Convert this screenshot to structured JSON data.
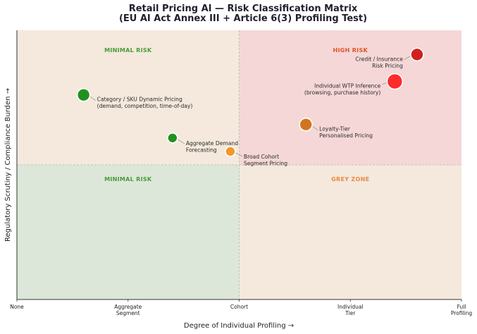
{
  "title_line1": "Retail Pricing AI — Risk Classification Matrix",
  "title_line2": "(EU AI Act Annex III + Article 6(3) Profiling Test)",
  "chart_data": {
    "type": "scatter",
    "xlabel": "Degree of Individual Profiling →",
    "ylabel": "Regulatory Scrutiny / Compliance Burden →",
    "xlim": [
      0,
      4
    ],
    "ylim": [
      0,
      10
    ],
    "x_ticks": [
      {
        "value": 0,
        "label": [
          "None"
        ]
      },
      {
        "value": 1,
        "label": [
          "Aggregate",
          "Segment"
        ]
      },
      {
        "value": 2,
        "label": [
          "Cohort"
        ]
      },
      {
        "value": 3,
        "label": [
          "Individual",
          "Tier"
        ]
      },
      {
        "value": 4,
        "label": [
          "Full",
          "Profiling"
        ]
      }
    ],
    "quadrants": [
      {
        "label": "MINIMAL RISK",
        "region": "top-left",
        "color": "#4a9a3a",
        "fill": "#f4e9dc"
      },
      {
        "label": "HIGH RISK",
        "region": "top-right",
        "color": "#e0522a",
        "fill": "#f5d7d7"
      },
      {
        "label": "MINIMAL RISK",
        "region": "bottom-left",
        "color": "#4a9a3a",
        "fill": "#dce7d9"
      },
      {
        "label": "GREY ZONE",
        "region": "bottom-right",
        "color": "#e8894a",
        "fill": "#f4e9dc"
      }
    ],
    "points": [
      {
        "label": [
          "Category / SKU Dynamic Pricing",
          "(demand, competition, time-of-day)"
        ],
        "x": 0.6,
        "y": 7.6,
        "color": "#22901f",
        "size": "medium"
      },
      {
        "label": [
          "Aggregate Demand",
          "Forecasting"
        ],
        "x": 1.4,
        "y": 6.0,
        "color": "#22901f",
        "size": "small"
      },
      {
        "label": [
          "Broad Cohort",
          "Segment Pricing"
        ],
        "x": 1.92,
        "y": 5.5,
        "color": "#f5952a",
        "size": "small"
      },
      {
        "label": [
          "Loyalty-Tier",
          "Personalised Pricing"
        ],
        "x": 2.6,
        "y": 6.5,
        "color": "#d27520",
        "size": "medium"
      },
      {
        "label": [
          "Individual WTP Inference",
          "(browsing, purchase history)"
        ],
        "x": 3.4,
        "y": 8.1,
        "color": "#ff2a2a",
        "size": "large"
      },
      {
        "label": [
          "Credit / Insurance",
          "Risk Pricing"
        ],
        "x": 3.6,
        "y": 9.1,
        "color": "#d0201e",
        "size": "medium"
      }
    ]
  }
}
